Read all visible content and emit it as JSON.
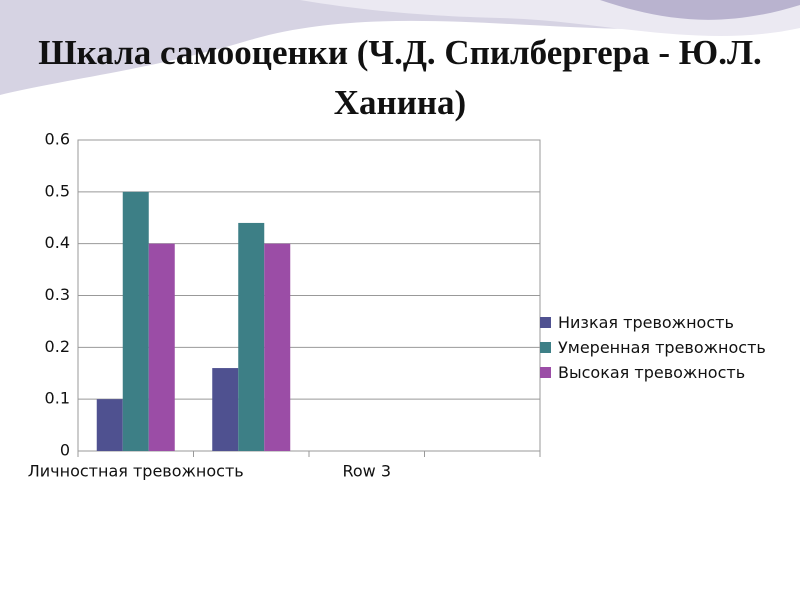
{
  "chart_data": {
    "type": "bar",
    "title": "Шкала самооценки (Ч.Д. Спилбергера - Ю.Л. Ханина)",
    "categories": [
      "Личностная тревожность",
      null,
      "Row 3",
      null
    ],
    "series": [
      {
        "name": "Низкая тревожность",
        "color": "#4f5190",
        "values": [
          0.1,
          0.16,
          null,
          null
        ]
      },
      {
        "name": "Умеренная тревожность",
        "color": "#3d7f86",
        "values": [
          0.5,
          0.44,
          null,
          null
        ]
      },
      {
        "name": "Высокая тревожность",
        "color": "#9b4da6",
        "values": [
          0.4,
          0.4,
          null,
          null
        ]
      }
    ],
    "ylim": [
      0,
      0.6
    ],
    "yticks": [
      0,
      0.1,
      0.2,
      0.3,
      0.4,
      0.5,
      0.6
    ],
    "grid": true,
    "legend": "right"
  }
}
